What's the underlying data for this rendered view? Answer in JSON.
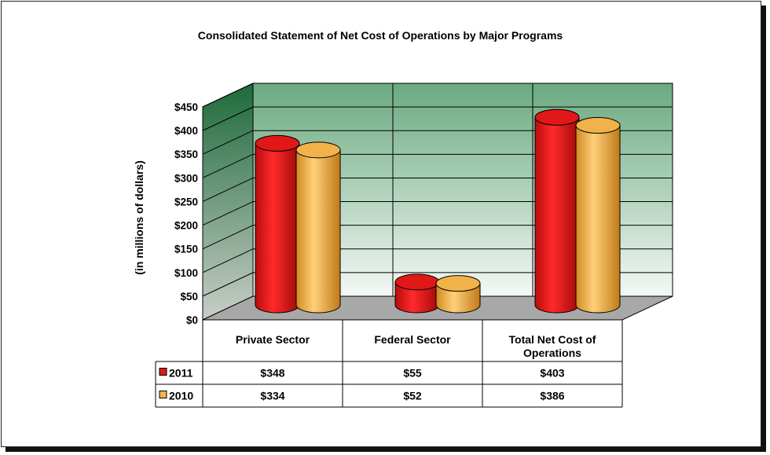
{
  "chart_data": {
    "type": "bar",
    "title": "Consolidated Statement of Net Cost of Operations by Major Programs",
    "ylabel": "(in millions of dollars)",
    "xlabel": "",
    "ylim": [
      0,
      450
    ],
    "y_ticks": [
      "$0",
      "$50",
      "$100",
      "$150",
      "$200",
      "$250",
      "$300",
      "$350",
      "$400",
      "$450"
    ],
    "y_tick_values": [
      0,
      50,
      100,
      150,
      200,
      250,
      300,
      350,
      400,
      450
    ],
    "categories": [
      "Private Sector",
      "Federal Sector",
      "Total Net Cost of Operations"
    ],
    "series": [
      {
        "name": "2011",
        "values": [
          348,
          55,
          403
        ],
        "labels": [
          "$348",
          "$55",
          "$403"
        ],
        "color": "#e01818"
      },
      {
        "name": "2010",
        "values": [
          334,
          52,
          386
        ],
        "labels": [
          "$334",
          "$52",
          "$386"
        ],
        "color": "#f2b24a"
      }
    ],
    "grid": true,
    "legend": "data table",
    "style": "3d-cylinder",
    "colors": {
      "wall_top": "#6aaa80",
      "wall_bottom": "#f4f8f5",
      "side_wall": "#1e6a3a",
      "floor": "#a8a8a8"
    }
  }
}
